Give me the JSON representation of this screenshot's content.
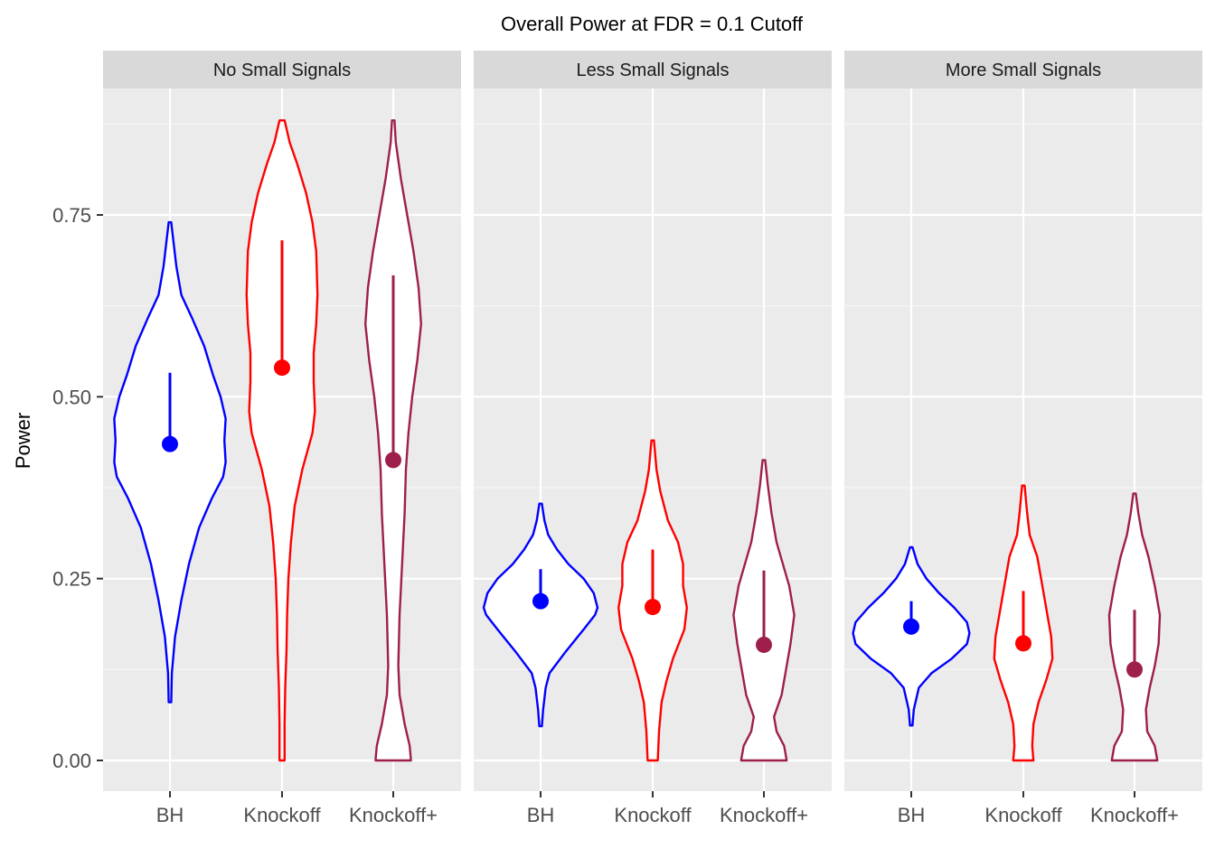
{
  "chart_data": {
    "type": "violin",
    "title": "Overall Power at FDR = 0.1 Cutoff",
    "xlabel": "",
    "ylabel": "Power",
    "ylim": [
      -0.04,
      0.9
    ],
    "yticks": [
      0.0,
      0.25,
      0.5,
      0.75
    ],
    "ytick_labels": [
      "0.00",
      "0.25",
      "0.50",
      "0.75"
    ],
    "categories": [
      "BH",
      "Knockoff",
      "Knockoff+"
    ],
    "colors": {
      "BH": "#0000ff",
      "Knockoff": "#ff0000",
      "Knockoff+": "#9e1f4c"
    },
    "grid": true,
    "legend": "none",
    "panels": [
      {
        "name": "No Small Signals",
        "series": [
          {
            "category": "BH",
            "min": 0.08,
            "max": 0.74,
            "mean": 0.435,
            "line_low": 0.435,
            "line_high": 0.533,
            "width_profile": [
              [
                0.08,
                0.01
              ],
              [
                0.12,
                0.015
              ],
              [
                0.17,
                0.04
              ],
              [
                0.22,
                0.09
              ],
              [
                0.27,
                0.15
              ],
              [
                0.32,
                0.23
              ],
              [
                0.36,
                0.33
              ],
              [
                0.39,
                0.42
              ],
              [
                0.41,
                0.44
              ],
              [
                0.44,
                0.43
              ],
              [
                0.47,
                0.44
              ],
              [
                0.5,
                0.4
              ],
              [
                0.53,
                0.34
              ],
              [
                0.57,
                0.27
              ],
              [
                0.61,
                0.17
              ],
              [
                0.64,
                0.09
              ],
              [
                0.68,
                0.05
              ],
              [
                0.71,
                0.03
              ],
              [
                0.74,
                0.01
              ]
            ]
          },
          {
            "category": "Knockoff",
            "min": 0.0,
            "max": 0.88,
            "mean": 0.54,
            "line_low": 0.54,
            "line_high": 0.715,
            "width_profile": [
              [
                0.0,
                0.02
              ],
              [
                0.05,
                0.02
              ],
              [
                0.1,
                0.025
              ],
              [
                0.15,
                0.035
              ],
              [
                0.2,
                0.04
              ],
              [
                0.25,
                0.05
              ],
              [
                0.3,
                0.07
              ],
              [
                0.35,
                0.1
              ],
              [
                0.4,
                0.16
              ],
              [
                0.45,
                0.24
              ],
              [
                0.48,
                0.26
              ],
              [
                0.52,
                0.25
              ],
              [
                0.56,
                0.25
              ],
              [
                0.6,
                0.27
              ],
              [
                0.64,
                0.28
              ],
              [
                0.7,
                0.27
              ],
              [
                0.74,
                0.24
              ],
              [
                0.78,
                0.19
              ],
              [
                0.82,
                0.12
              ],
              [
                0.85,
                0.06
              ],
              [
                0.88,
                0.02
              ]
            ]
          },
          {
            "category": "Knockoff+",
            "min": 0.0,
            "max": 0.88,
            "mean": 0.413,
            "line_low": 0.413,
            "line_high": 0.667,
            "width_profile": [
              [
                0.0,
                0.14
              ],
              [
                0.02,
                0.13
              ],
              [
                0.05,
                0.09
              ],
              [
                0.09,
                0.05
              ],
              [
                0.13,
                0.04
              ],
              [
                0.2,
                0.05
              ],
              [
                0.27,
                0.07
              ],
              [
                0.34,
                0.09
              ],
              [
                0.4,
                0.1
              ],
              [
                0.45,
                0.12
              ],
              [
                0.5,
                0.15
              ],
              [
                0.55,
                0.19
              ],
              [
                0.6,
                0.22
              ],
              [
                0.65,
                0.2
              ],
              [
                0.7,
                0.16
              ],
              [
                0.75,
                0.11
              ],
              [
                0.8,
                0.06
              ],
              [
                0.85,
                0.02
              ],
              [
                0.88,
                0.01
              ]
            ]
          }
        ]
      },
      {
        "name": "Less Small Signals",
        "series": [
          {
            "category": "BH",
            "min": 0.047,
            "max": 0.353,
            "mean": 0.219,
            "line_low": 0.219,
            "line_high": 0.263,
            "width_profile": [
              [
                0.047,
                0.01
              ],
              [
                0.07,
                0.02
              ],
              [
                0.1,
                0.04
              ],
              [
                0.12,
                0.07
              ],
              [
                0.15,
                0.2
              ],
              [
                0.18,
                0.34
              ],
              [
                0.2,
                0.43
              ],
              [
                0.21,
                0.45
              ],
              [
                0.23,
                0.42
              ],
              [
                0.25,
                0.34
              ],
              [
                0.27,
                0.22
              ],
              [
                0.29,
                0.13
              ],
              [
                0.31,
                0.06
              ],
              [
                0.33,
                0.03
              ],
              [
                0.353,
                0.01
              ]
            ]
          },
          {
            "category": "Knockoff",
            "min": 0.0,
            "max": 0.44,
            "mean": 0.211,
            "line_low": 0.211,
            "line_high": 0.29,
            "width_profile": [
              [
                0.0,
                0.04
              ],
              [
                0.04,
                0.05
              ],
              [
                0.08,
                0.07
              ],
              [
                0.11,
                0.11
              ],
              [
                0.14,
                0.16
              ],
              [
                0.18,
                0.25
              ],
              [
                0.21,
                0.27
              ],
              [
                0.24,
                0.24
              ],
              [
                0.27,
                0.24
              ],
              [
                0.3,
                0.2
              ],
              [
                0.33,
                0.12
              ],
              [
                0.37,
                0.06
              ],
              [
                0.4,
                0.03
              ],
              [
                0.44,
                0.01
              ]
            ]
          },
          {
            "category": "Knockoff+",
            "min": 0.0,
            "max": 0.413,
            "mean": 0.159,
            "line_low": 0.159,
            "line_high": 0.261,
            "width_profile": [
              [
                0.0,
                0.18
              ],
              [
                0.02,
                0.16
              ],
              [
                0.04,
                0.1
              ],
              [
                0.06,
                0.08
              ],
              [
                0.09,
                0.14
              ],
              [
                0.13,
                0.18
              ],
              [
                0.16,
                0.21
              ],
              [
                0.2,
                0.24
              ],
              [
                0.24,
                0.2
              ],
              [
                0.27,
                0.15
              ],
              [
                0.3,
                0.1
              ],
              [
                0.34,
                0.06
              ],
              [
                0.38,
                0.03
              ],
              [
                0.413,
                0.01
              ]
            ]
          }
        ]
      },
      {
        "name": "More Small Signals",
        "series": [
          {
            "category": "BH",
            "min": 0.048,
            "max": 0.293,
            "mean": 0.184,
            "line_low": 0.184,
            "line_high": 0.219,
            "width_profile": [
              [
                0.048,
                0.01
              ],
              [
                0.07,
                0.02
              ],
              [
                0.1,
                0.06
              ],
              [
                0.12,
                0.16
              ],
              [
                0.14,
                0.32
              ],
              [
                0.16,
                0.44
              ],
              [
                0.175,
                0.46
              ],
              [
                0.19,
                0.44
              ],
              [
                0.21,
                0.34
              ],
              [
                0.23,
                0.22
              ],
              [
                0.25,
                0.12
              ],
              [
                0.27,
                0.05
              ],
              [
                0.293,
                0.01
              ]
            ]
          },
          {
            "category": "Knockoff",
            "min": 0.0,
            "max": 0.378,
            "mean": 0.161,
            "line_low": 0.161,
            "line_high": 0.233,
            "width_profile": [
              [
                0.0,
                0.08
              ],
              [
                0.02,
                0.07
              ],
              [
                0.05,
                0.08
              ],
              [
                0.08,
                0.12
              ],
              [
                0.11,
                0.18
              ],
              [
                0.14,
                0.23
              ],
              [
                0.17,
                0.22
              ],
              [
                0.2,
                0.19
              ],
              [
                0.24,
                0.15
              ],
              [
                0.28,
                0.11
              ],
              [
                0.31,
                0.05
              ],
              [
                0.34,
                0.03
              ],
              [
                0.378,
                0.01
              ]
            ]
          },
          {
            "category": "Knockoff+",
            "min": 0.0,
            "max": 0.367,
            "mean": 0.125,
            "line_low": 0.125,
            "line_high": 0.207,
            "width_profile": [
              [
                0.0,
                0.18
              ],
              [
                0.02,
                0.16
              ],
              [
                0.04,
                0.1
              ],
              [
                0.07,
                0.09
              ],
              [
                0.1,
                0.12
              ],
              [
                0.13,
                0.16
              ],
              [
                0.16,
                0.19
              ],
              [
                0.2,
                0.2
              ],
              [
                0.24,
                0.16
              ],
              [
                0.28,
                0.11
              ],
              [
                0.31,
                0.06
              ],
              [
                0.34,
                0.03
              ],
              [
                0.367,
                0.01
              ]
            ]
          }
        ]
      }
    ]
  }
}
